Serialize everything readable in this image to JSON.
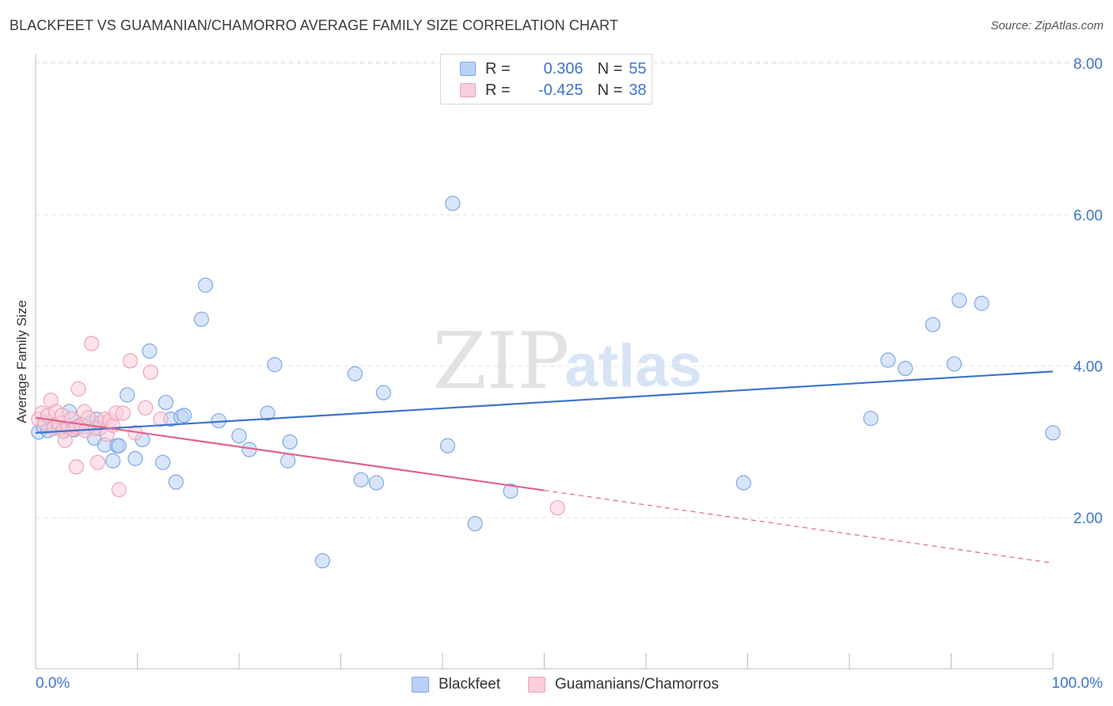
{
  "title": "BLACKFEET VS GUAMANIAN/CHAMORRO AVERAGE FAMILY SIZE CORRELATION CHART",
  "source": "Source: ZipAtlas.com",
  "watermark": {
    "part1": "ZIP",
    "part2": "atlas"
  },
  "colors": {
    "blue": "#3d74c9",
    "blue_fill": "#b9d1f5",
    "blue_stroke": "#7ea7e6",
    "pink": "#e0628f",
    "pink_fill": "#f9cdd9",
    "pink_stroke": "#eea3b9",
    "tick_label": "#3d74c9",
    "grid": "#e2e2e2"
  },
  "legend": {
    "rows": [
      {
        "r_label": "R =",
        "r_value": "0.306",
        "n_label": "N =",
        "n_value": "55"
      },
      {
        "r_label": "R =",
        "r_value": "-0.425",
        "n_label": "N =",
        "n_value": "38"
      }
    ]
  },
  "bottom_legend": {
    "items": [
      {
        "label": "Blackfeet"
      },
      {
        "label": "Guamanians/Chamorros"
      }
    ]
  },
  "chart_data": {
    "type": "scatter",
    "title": "BLACKFEET VS GUAMANIAN/CHAMORRO AVERAGE FAMILY SIZE CORRELATION CHART",
    "xlabel": "",
    "ylabel": "Average Family Size",
    "xlim": [
      0,
      100
    ],
    "ylim": [
      0,
      8.2
    ],
    "x_tick_labels": [
      "0.0%",
      "100.0%"
    ],
    "y_ticks": [
      2,
      4,
      6,
      8
    ],
    "y_tick_labels": [
      "2.00",
      "4.00",
      "6.00",
      "8.00"
    ],
    "grid": true,
    "legend_position": "top-center",
    "series": [
      {
        "name": "Blackfeet",
        "r": 0.306,
        "n": 55,
        "trend": {
          "x": [
            0,
            100
          ],
          "y": [
            3.12,
            3.93
          ],
          "extrapolated_from": null
        },
        "points": [
          [
            0.3,
            3.13
          ],
          [
            0.8,
            3.2
          ],
          [
            1.2,
            3.15
          ],
          [
            1.8,
            3.22
          ],
          [
            2.3,
            3.18
          ],
          [
            2.8,
            3.14
          ],
          [
            3.3,
            3.4
          ],
          [
            3.8,
            3.16
          ],
          [
            4.3,
            3.22
          ],
          [
            4.8,
            3.2
          ],
          [
            5.3,
            3.25
          ],
          [
            5.8,
            3.05
          ],
          [
            6.0,
            3.3
          ],
          [
            6.3,
            3.18
          ],
          [
            6.8,
            2.96
          ],
          [
            7.6,
            2.75
          ],
          [
            8.0,
            2.95
          ],
          [
            8.2,
            2.95
          ],
          [
            9.0,
            3.62
          ],
          [
            9.8,
            2.78
          ],
          [
            10.5,
            3.03
          ],
          [
            11.2,
            4.2
          ],
          [
            12.5,
            2.73
          ],
          [
            12.8,
            3.52
          ],
          [
            13.3,
            3.3
          ],
          [
            13.8,
            2.47
          ],
          [
            14.3,
            3.33
          ],
          [
            14.6,
            3.35
          ],
          [
            16.3,
            4.62
          ],
          [
            16.7,
            5.07
          ],
          [
            18.0,
            3.28
          ],
          [
            20.0,
            3.08
          ],
          [
            21.0,
            2.9
          ],
          [
            22.8,
            3.38
          ],
          [
            23.5,
            4.02
          ],
          [
            24.8,
            2.75
          ],
          [
            25.0,
            3.0
          ],
          [
            28.2,
            1.43
          ],
          [
            31.4,
            3.9
          ],
          [
            32.0,
            2.5
          ],
          [
            33.5,
            2.46
          ],
          [
            34.2,
            3.65
          ],
          [
            40.5,
            2.95
          ],
          [
            41.0,
            6.15
          ],
          [
            43.2,
            1.92
          ],
          [
            46.7,
            2.35
          ],
          [
            69.6,
            2.46
          ],
          [
            82.1,
            3.31
          ],
          [
            83.8,
            4.08
          ],
          [
            85.5,
            3.97
          ],
          [
            88.2,
            4.55
          ],
          [
            90.3,
            4.03
          ],
          [
            90.8,
            4.87
          ],
          [
            93.0,
            4.83
          ],
          [
            100.0,
            3.12
          ]
        ]
      },
      {
        "name": "Guamanians/Chamorros",
        "r": -0.425,
        "n": 38,
        "trend": {
          "x": [
            0,
            50
          ],
          "y": [
            3.32,
            2.36
          ],
          "dashed_to": [
            100,
            1.4
          ]
        },
        "points": [
          [
            0.3,
            3.3
          ],
          [
            0.6,
            3.38
          ],
          [
            0.9,
            3.25
          ],
          [
            1.2,
            3.35
          ],
          [
            1.5,
            3.55
          ],
          [
            1.8,
            3.18
          ],
          [
            2.0,
            3.4
          ],
          [
            2.3,
            3.25
          ],
          [
            2.6,
            3.35
          ],
          [
            2.7,
            3.15
          ],
          [
            2.9,
            3.02
          ],
          [
            3.2,
            3.2
          ],
          [
            3.5,
            3.3
          ],
          [
            3.7,
            3.17
          ],
          [
            4.0,
            3.2
          ],
          [
            4.0,
            2.67
          ],
          [
            4.2,
            3.7
          ],
          [
            4.5,
            3.22
          ],
          [
            4.8,
            3.4
          ],
          [
            4.9,
            3.15
          ],
          [
            5.2,
            3.32
          ],
          [
            5.5,
            4.3
          ],
          [
            5.9,
            3.18
          ],
          [
            6.1,
            2.73
          ],
          [
            6.4,
            3.25
          ],
          [
            6.8,
            3.3
          ],
          [
            7.0,
            3.1
          ],
          [
            7.3,
            3.28
          ],
          [
            7.6,
            3.22
          ],
          [
            7.9,
            3.38
          ],
          [
            8.2,
            2.37
          ],
          [
            8.6,
            3.38
          ],
          [
            9.3,
            4.07
          ],
          [
            9.8,
            3.12
          ],
          [
            10.8,
            3.45
          ],
          [
            11.3,
            3.92
          ],
          [
            12.3,
            3.3
          ],
          [
            51.3,
            2.13
          ]
        ]
      }
    ]
  }
}
